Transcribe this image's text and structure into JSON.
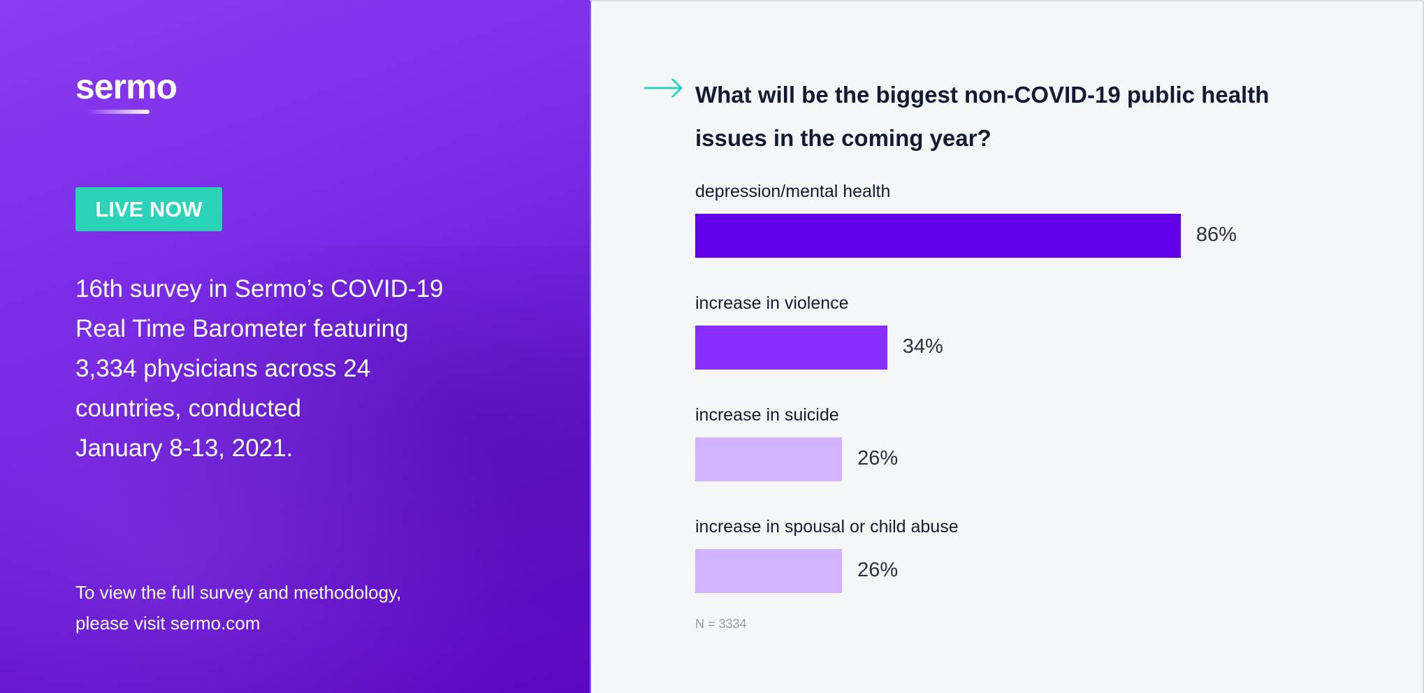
{
  "left": {
    "logo": "sermo",
    "badge": "LIVE NOW",
    "description_lines": [
      "16th survey in Sermo’s COVID-19",
      "Real Time Barometer featuring",
      "3,334 physicians across 24",
      "countries, conducted",
      "January 8-13, 2021."
    ],
    "footer_lines": [
      "To view the full survey and methodology,",
      "please visit sermo.com"
    ]
  },
  "chart_data": {
    "type": "bar",
    "orientation": "horizontal",
    "title": "What will be the biggest non-COVID-19 public health issues in the coming year?",
    "categories": [
      "depression/mental health",
      "increase in violence",
      "increase in suicide",
      "increase in spousal or child abuse"
    ],
    "values": [
      86,
      34,
      26,
      26
    ],
    "value_labels": [
      "86%",
      "34%",
      "26%",
      "26%"
    ],
    "colors": [
      "#6200ea",
      "#8a2eff",
      "#d4b3ff",
      "#d4b3ff"
    ],
    "xlim": [
      0,
      100
    ],
    "note": "N = 3334"
  }
}
